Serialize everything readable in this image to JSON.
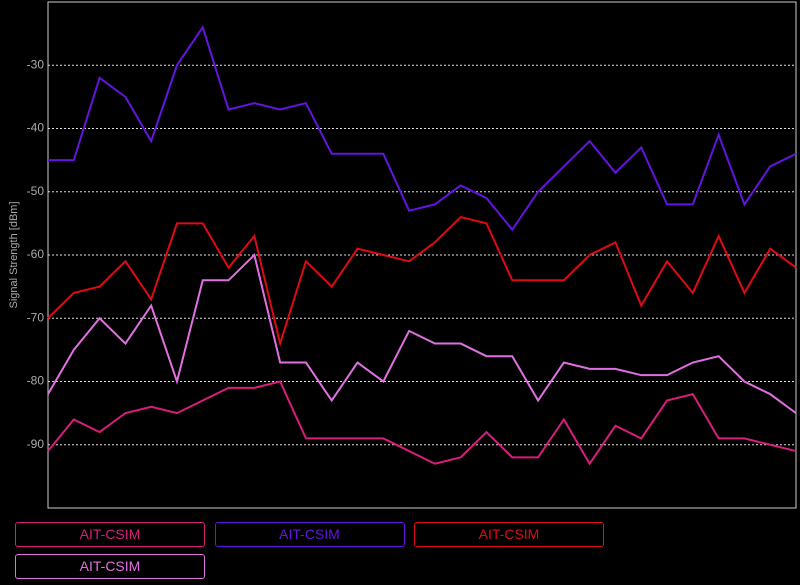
{
  "chart_data": {
    "type": "line",
    "y_label": "Signal Strength [dBm]",
    "categories": [
      null,
      null,
      null,
      null,
      null,
      null,
      null,
      null,
      null,
      null,
      null,
      null,
      null,
      null,
      null,
      null,
      null,
      null,
      null,
      null,
      null,
      null,
      null,
      null,
      null,
      null,
      null,
      null,
      null,
      null
    ],
    "ylim": [
      -100,
      -20
    ],
    "yticks": [
      -90,
      -80,
      -70,
      -60,
      -50,
      -40,
      -30
    ],
    "grid": true,
    "series": [
      {
        "name": "AIT-CSIM",
        "color": "#d81e7c",
        "values": [
          -91,
          -86,
          -88,
          -85,
          -84,
          -85,
          -83,
          -81,
          -81,
          -80,
          -89,
          -89,
          -89,
          -89,
          -91,
          -93,
          -92,
          -88,
          -92,
          -92,
          -86,
          -93,
          -87,
          -89,
          -83,
          -82,
          -89,
          -89,
          -90,
          -91
        ]
      },
      {
        "name": "AIT-CSIM",
        "color": "#6414e0",
        "values": [
          -45,
          -45,
          -32,
          -35,
          -42,
          -30,
          -24,
          -37,
          -36,
          -37,
          -36,
          -44,
          -44,
          -44,
          -53,
          -52,
          -49,
          -51,
          -56,
          -50,
          -46,
          -42,
          -47,
          -43,
          -52,
          -52,
          -41,
          -52,
          -46,
          -44
        ]
      },
      {
        "name": "AIT-CSIM",
        "color": "#e00a14",
        "values": [
          -70,
          -66,
          -65,
          -61,
          -67,
          -55,
          -55,
          -62,
          -57,
          -74,
          -61,
          -65,
          -59,
          -60,
          -61,
          -58,
          -54,
          -55,
          -64,
          -64,
          -64,
          -60,
          -58,
          -68,
          -61,
          -66,
          -57,
          -66,
          -59,
          -62
        ]
      },
      {
        "name": "AIT-CSIM",
        "color": "#e070e0",
        "values": [
          -82,
          -75,
          -70,
          -74,
          -68,
          -80,
          -64,
          -64,
          -60,
          -77,
          -77,
          -83,
          -77,
          -80,
          -72,
          -74,
          -74,
          -76,
          -76,
          -83,
          -77,
          -78,
          -78,
          -79,
          -79,
          -77,
          -76,
          -80,
          -82,
          -85
        ]
      }
    ]
  }
}
